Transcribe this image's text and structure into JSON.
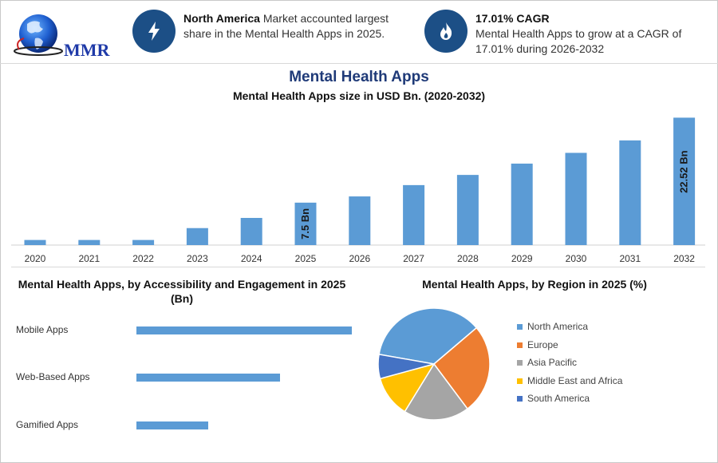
{
  "logo": {
    "text": "MMR",
    "icon": "globe-icon"
  },
  "header": {
    "info1": {
      "icon": "lightning-icon",
      "bold": "North America",
      "text": " Market accounted largest share in the Mental Health Apps in 2025."
    },
    "info2": {
      "icon": "flame-icon",
      "bold": "17.01% CAGR",
      "text": "Mental Health Apps to grow at a CAGR of 17.01% during 2026-2032"
    }
  },
  "colors": {
    "bar": "#5b9bd5",
    "accent": "#1c4f86",
    "title": "#1f3a78"
  },
  "chart_data": [
    {
      "type": "bar",
      "title": "Mental Health Apps",
      "subtitle": "Mental Health Apps size in USD Bn. (2020-2032)",
      "categories": [
        "2020",
        "2021",
        "2022",
        "2023",
        "2024",
        "2025",
        "2026",
        "2027",
        "2028",
        "2029",
        "2030",
        "2031",
        "2032"
      ],
      "values": [
        0.9,
        0.9,
        0.9,
        3.0,
        4.8,
        7.5,
        8.6,
        10.6,
        12.4,
        14.4,
        16.3,
        18.5,
        22.52
      ],
      "data_labels": [
        {
          "category": "2025",
          "text": "7.5 Bn"
        },
        {
          "category": "2032",
          "text": "22.52 Bn"
        }
      ],
      "ylim": [
        0,
        23
      ],
      "grid": false
    },
    {
      "type": "bar",
      "orientation": "horizontal",
      "title": "Mental Health Apps, by Accessibility and Engagement in 2025 (Bn)",
      "categories": [
        "Mobile Apps",
        "Web-Based Apps",
        "Gamified Apps"
      ],
      "values": [
        4.5,
        3.0,
        1.5
      ],
      "xlim": [
        0,
        4.5
      ]
    },
    {
      "type": "pie",
      "title": "Mental Health Apps, by Region in 2025 (%)",
      "labels": [
        "North America",
        "Europe",
        "Asia Pacific",
        "Middle East and Africa",
        "South America"
      ],
      "values": [
        36,
        26,
        19,
        12,
        7
      ],
      "colors": [
        "#5b9bd5",
        "#ed7d31",
        "#a5a5a5",
        "#ffc000",
        "#4472c4"
      ],
      "legend": "right"
    }
  ]
}
